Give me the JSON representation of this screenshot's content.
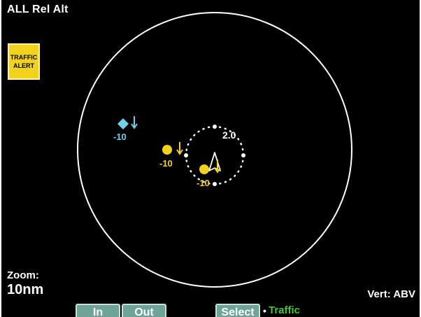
{
  "header": {
    "mode_title": "ALL Rel Alt"
  },
  "alert": {
    "line1": "TRAFFIC",
    "line2": "ALERT",
    "color": "#f2d21c"
  },
  "radar": {
    "inner_ring_label": "2.0"
  },
  "targets": [
    {
      "type": "proximate",
      "symbol": "diamond",
      "rel_alt": "-10",
      "trend": "descending",
      "color": "#6fd0e6"
    },
    {
      "type": "alert",
      "symbol": "circle",
      "rel_alt": "-10",
      "trend": "descending",
      "color": "#f2d21c"
    },
    {
      "type": "alert",
      "symbol": "circle",
      "rel_alt": "-10",
      "trend": "descending",
      "color": "#f2d21c"
    }
  ],
  "zoom": {
    "label": "Zoom:",
    "value": "10nm"
  },
  "vertical": {
    "label": "Vert: ABV"
  },
  "softkeys": {
    "in": "In",
    "out": "Out",
    "select": "Select",
    "separator": "•",
    "selected_function": "Traffic",
    "selected_color": "#43c43a"
  },
  "icons": {
    "ownship": "ownship-aircraft-icon",
    "trend_arrow": "descending-arrow-icon"
  }
}
